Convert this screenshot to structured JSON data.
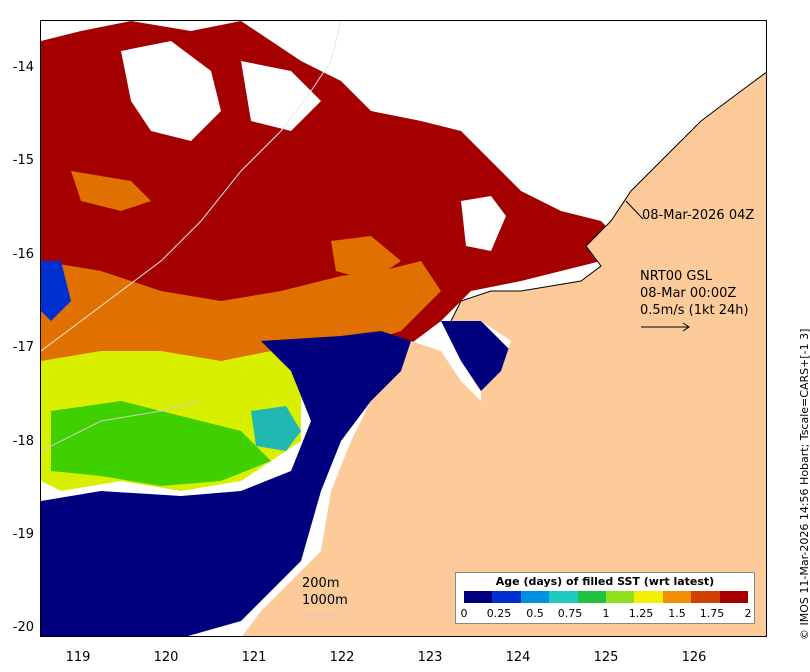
{
  "map": {
    "y_ticks": [
      "-14",
      "-15",
      "-16",
      "-17",
      "-18",
      "-19",
      "-20"
    ],
    "x_ticks": [
      "119",
      "120",
      "121",
      "122",
      "123",
      "124",
      "125",
      "126"
    ],
    "time_label": "08-Mar-2026 04Z",
    "current_block": {
      "line1": "NRT00 GSL",
      "line2": "08-Mar 00:00Z",
      "line3": "0.5m/s (1kt 24h)"
    },
    "scale_lines": {
      "top": "200m",
      "bottom": "1000m"
    },
    "credit": "© IMOS 11-Mar-2026 14:56 Hobart; Tscale=CARS+[-1 3]",
    "colors": {
      "land": "#fdcb9a",
      "cloud_gap": "#ffffff",
      "age_2": "#a40000",
      "age_1_75": "#e07000",
      "age_1_25": "#d8f000",
      "age_1": "#40d000",
      "age_0_75": "#20b8b0",
      "age_0": "#00007e"
    }
  },
  "legend": {
    "title": "Age (days) of filled SST (wrt latest)",
    "ticks": [
      "0",
      "0.25",
      "0.5",
      "0.75",
      "1",
      "1.25",
      "1.5",
      "1.75",
      "2"
    ],
    "colors": [
      "#00007e",
      "#0030d0",
      "#0090e0",
      "#20c8c0",
      "#20c040",
      "#90e020",
      "#f0f000",
      "#f09000",
      "#d04000",
      "#a40000"
    ]
  }
}
